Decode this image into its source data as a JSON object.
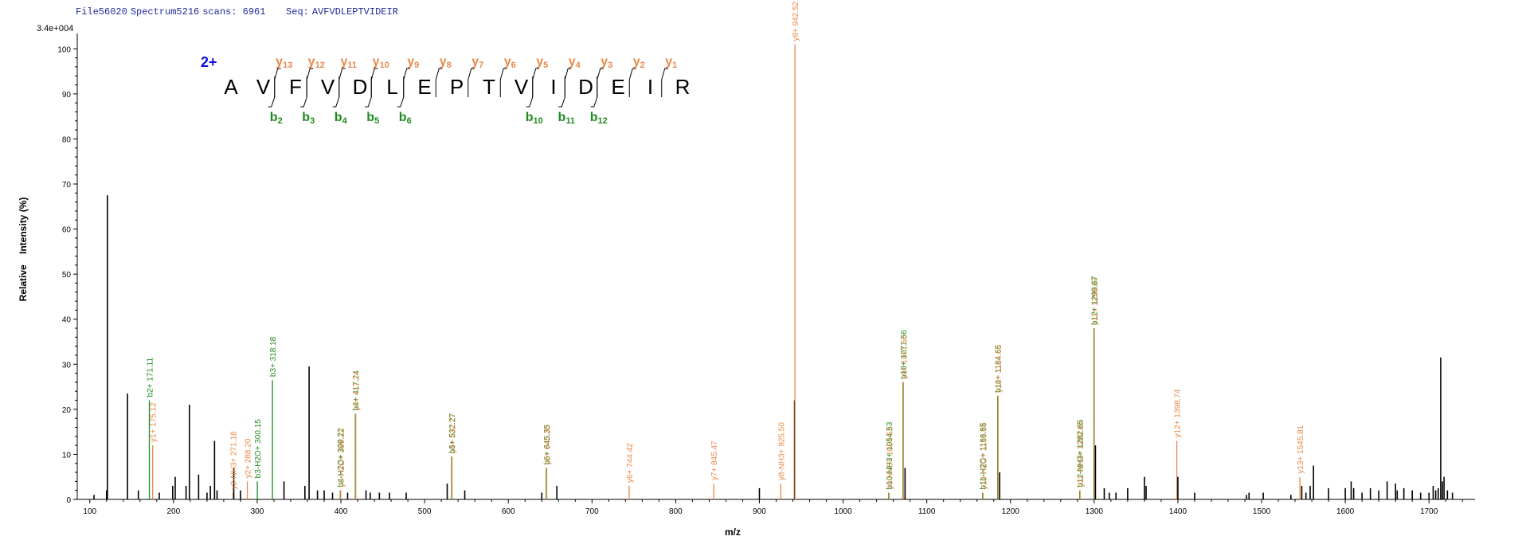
{
  "header": {
    "file": "File56020",
    "spectrum": "Spectrum5216",
    "scans_label": "scans: 6961",
    "seq_label": "Seq:",
    "sequence": "AVFVDLEPTVIDEIR"
  },
  "y_max_label": "3.4e+004",
  "charge_label": "2+",
  "chart_data": {
    "type": "bar",
    "xlabel": "m/z",
    "ylabel": "Relative    Intensity (%)",
    "xlim": [
      85,
      1755
    ],
    "ylim": [
      0,
      102
    ],
    "x_ticks": [
      100,
      200,
      300,
      400,
      500,
      600,
      700,
      800,
      900,
      1000,
      1100,
      1200,
      1300,
      1400,
      1500,
      1600,
      1700
    ],
    "y_ticks": [
      0,
      10,
      20,
      30,
      40,
      50,
      60,
      70,
      80,
      90,
      100
    ],
    "colors": {
      "b": "#1f8a1f",
      "y": "#e8894a",
      "other": "#000000"
    },
    "peaks": [
      {
        "mz": 105,
        "intensity": 1
      },
      {
        "mz": 120,
        "intensity": 2
      },
      {
        "mz": 121,
        "intensity": 67.5
      },
      {
        "mz": 145,
        "intensity": 23.5
      },
      {
        "mz": 158,
        "intensity": 2
      },
      {
        "mz": 171.11,
        "intensity": 22,
        "ion": "b",
        "label": "b2+ 171.11"
      },
      {
        "mz": 175.12,
        "intensity": 12,
        "ion": "y",
        "label": "y1+ 175.12"
      },
      {
        "mz": 183,
        "intensity": 1.5
      },
      {
        "mz": 199,
        "intensity": 3
      },
      {
        "mz": 202,
        "intensity": 5
      },
      {
        "mz": 215,
        "intensity": 3
      },
      {
        "mz": 219,
        "intensity": 21
      },
      {
        "mz": 230,
        "intensity": 5.5
      },
      {
        "mz": 240,
        "intensity": 1.5
      },
      {
        "mz": 244,
        "intensity": 3
      },
      {
        "mz": 249,
        "intensity": 13
      },
      {
        "mz": 252,
        "intensity": 2
      },
      {
        "mz": 271.18,
        "intensity": 1.5,
        "ion": "y",
        "label": "y2-NH3+ 271.18"
      },
      {
        "mz": 272,
        "intensity": 7
      },
      {
        "mz": 280,
        "intensity": 2
      },
      {
        "mz": 288.2,
        "intensity": 4,
        "ion": "y",
        "label": "y2+ 288.20"
      },
      {
        "mz": 300.15,
        "intensity": 4,
        "ion": "b",
        "label": "b3-H2O+ 300.15"
      },
      {
        "mz": 318.18,
        "intensity": 26.5,
        "ion": "b",
        "label": "b3+ 318.18"
      },
      {
        "mz": 332,
        "intensity": 4
      },
      {
        "mz": 357,
        "intensity": 3
      },
      {
        "mz": 362,
        "intensity": 29.5
      },
      {
        "mz": 372,
        "intensity": 2
      },
      {
        "mz": 380,
        "intensity": 2
      },
      {
        "mz": 390,
        "intensity": 1.5
      },
      {
        "mz": 399.22,
        "intensity": 2,
        "ion": "b",
        "label": "b4-H2O+ 399.22"
      },
      {
        "mz": 399.8,
        "intensity": 2,
        "ion": "y",
        "label": "y3-H2O+ 399.22"
      },
      {
        "mz": 408,
        "intensity": 1.5
      },
      {
        "mz": 417.24,
        "intensity": 19,
        "ion": "b",
        "label": "b4+ 417.24"
      },
      {
        "mz": 417.8,
        "intensity": 19,
        "ion": "y",
        "label": "y3+ 417.24"
      },
      {
        "mz": 430,
        "intensity": 2
      },
      {
        "mz": 435,
        "intensity": 1.5
      },
      {
        "mz": 446,
        "intensity": 1.5
      },
      {
        "mz": 458,
        "intensity": 1.5
      },
      {
        "mz": 478,
        "intensity": 1.5
      },
      {
        "mz": 527,
        "intensity": 3.5
      },
      {
        "mz": 532.27,
        "intensity": 9.5,
        "ion": "b",
        "label": "b5+ 532.27"
      },
      {
        "mz": 532.8,
        "intensity": 9.5,
        "ion": "y",
        "label": "y4+ 532.27"
      },
      {
        "mz": 548,
        "intensity": 2
      },
      {
        "mz": 640,
        "intensity": 1.5
      },
      {
        "mz": 645.35,
        "intensity": 7,
        "ion": "b",
        "label": "b6+ 645.35"
      },
      {
        "mz": 645.9,
        "intensity": 7,
        "ion": "y",
        "label": "y5+ 645.35"
      },
      {
        "mz": 658,
        "intensity": 3
      },
      {
        "mz": 744.42,
        "intensity": 3,
        "ion": "y",
        "label": "y6+ 744.42"
      },
      {
        "mz": 845.47,
        "intensity": 3.5,
        "ion": "y",
        "label": "y7+ 845.47"
      },
      {
        "mz": 900,
        "intensity": 2.5
      },
      {
        "mz": 925.5,
        "intensity": 3.5,
        "ion": "y",
        "label": "y8-NH3+ 925.50"
      },
      {
        "mz": 942,
        "intensity": 22
      },
      {
        "mz": 942.52,
        "intensity": 101,
        "ion": "y",
        "label": "y8+ 942.52"
      },
      {
        "mz": 1054.53,
        "intensity": 1.5,
        "ion": "b",
        "label": "b10-NH3+ 1054.53"
      },
      {
        "mz": 1055.1,
        "intensity": 1.5,
        "ion": "y",
        "label": "y9-NH3+ 1054.53"
      },
      {
        "mz": 1071.56,
        "intensity": 26,
        "ion": "b",
        "label": "b10+ 1071.56"
      },
      {
        "mz": 1072.1,
        "intensity": 26,
        "ion": "y",
        "label": "y9+ 1071.56"
      },
      {
        "mz": 1074,
        "intensity": 7
      },
      {
        "mz": 1166.65,
        "intensity": 1.5,
        "ion": "b",
        "label": "b11-H2O+ 1166.65"
      },
      {
        "mz": 1167.2,
        "intensity": 1.5,
        "ion": "y",
        "label": "y10-H2O+ 1166.65"
      },
      {
        "mz": 1184.65,
        "intensity": 23,
        "ion": "b",
        "label": "b11+ 1184.65"
      },
      {
        "mz": 1185.2,
        "intensity": 23,
        "ion": "y",
        "label": "y10+ 1184.65"
      },
      {
        "mz": 1187,
        "intensity": 6
      },
      {
        "mz": 1282.65,
        "intensity": 2,
        "ion": "b",
        "label": "b12-NH3+ 1282.65"
      },
      {
        "mz": 1283.2,
        "intensity": 2,
        "ion": "y",
        "label": "y11-NH3+ 1282.65"
      },
      {
        "mz": 1299.67,
        "intensity": 38,
        "ion": "b",
        "label": "b12+ 1299.67"
      },
      {
        "mz": 1300.2,
        "intensity": 38,
        "ion": "y",
        "label": "y11+ 1299.67"
      },
      {
        "mz": 1301.5,
        "intensity": 12
      },
      {
        "mz": 1312,
        "intensity": 2.5
      },
      {
        "mz": 1318,
        "intensity": 1.5
      },
      {
        "mz": 1326,
        "intensity": 1.5
      },
      {
        "mz": 1340,
        "intensity": 2.5
      },
      {
        "mz": 1360,
        "intensity": 5
      },
      {
        "mz": 1362,
        "intensity": 3
      },
      {
        "mz": 1398.74,
        "intensity": 13,
        "ion": "y",
        "label": "y12+ 1398.74"
      },
      {
        "mz": 1400,
        "intensity": 5
      },
      {
        "mz": 1420,
        "intensity": 1.5
      },
      {
        "mz": 1482,
        "intensity": 1
      },
      {
        "mz": 1485,
        "intensity": 1.5
      },
      {
        "mz": 1502,
        "intensity": 1.5
      },
      {
        "mz": 1535,
        "intensity": 1
      },
      {
        "mz": 1545.81,
        "intensity": 5,
        "ion": "y",
        "label": "y13+ 1545.81"
      },
      {
        "mz": 1548,
        "intensity": 3
      },
      {
        "mz": 1553,
        "intensity": 1.5
      },
      {
        "mz": 1558,
        "intensity": 3
      },
      {
        "mz": 1562,
        "intensity": 7.5
      },
      {
        "mz": 1580,
        "intensity": 2.5
      },
      {
        "mz": 1600,
        "intensity": 2.5
      },
      {
        "mz": 1607,
        "intensity": 4
      },
      {
        "mz": 1610,
        "intensity": 2.5
      },
      {
        "mz": 1620,
        "intensity": 1.5
      },
      {
        "mz": 1630,
        "intensity": 2.5
      },
      {
        "mz": 1640,
        "intensity": 2
      },
      {
        "mz": 1650,
        "intensity": 4
      },
      {
        "mz": 1660,
        "intensity": 3.5
      },
      {
        "mz": 1662,
        "intensity": 2
      },
      {
        "mz": 1670,
        "intensity": 2.5
      },
      {
        "mz": 1680,
        "intensity": 2
      },
      {
        "mz": 1690,
        "intensity": 1.5
      },
      {
        "mz": 1700,
        "intensity": 1.5
      },
      {
        "mz": 1705,
        "intensity": 3
      },
      {
        "mz": 1708,
        "intensity": 2
      },
      {
        "mz": 1711,
        "intensity": 2.5
      },
      {
        "mz": 1714,
        "intensity": 31.5
      },
      {
        "mz": 1716,
        "intensity": 4
      },
      {
        "mz": 1718,
        "intensity": 5
      },
      {
        "mz": 1722,
        "intensity": 2
      },
      {
        "mz": 1728,
        "intensity": 1.5
      }
    ]
  },
  "sequence_map": {
    "residues": [
      "A",
      "V",
      "F",
      "V",
      "D",
      "L",
      "E",
      "P",
      "T",
      "V",
      "I",
      "D",
      "E",
      "I",
      "R"
    ],
    "y_ions": [
      {
        "after": 2,
        "ion": "y",
        "num": "13"
      },
      {
        "after": 3,
        "ion": "y",
        "num": "12"
      },
      {
        "after": 4,
        "ion": "y",
        "num": "11"
      },
      {
        "after": 5,
        "ion": "y",
        "num": "10"
      },
      {
        "after": 6,
        "ion": "y",
        "num": "9"
      },
      {
        "after": 7,
        "ion": "y",
        "num": "8"
      },
      {
        "after": 8,
        "ion": "y",
        "num": "7"
      },
      {
        "after": 9,
        "ion": "y",
        "num": "6"
      },
      {
        "after": 10,
        "ion": "y",
        "num": "5"
      },
      {
        "after": 11,
        "ion": "y",
        "num": "4"
      },
      {
        "after": 12,
        "ion": "y",
        "num": "3"
      },
      {
        "after": 13,
        "ion": "y",
        "num": "2"
      },
      {
        "after": 14,
        "ion": "y",
        "num": "1"
      }
    ],
    "b_ions": [
      {
        "after": 2,
        "ion": "b",
        "num": "2"
      },
      {
        "after": 3,
        "ion": "b",
        "num": "3"
      },
      {
        "after": 4,
        "ion": "b",
        "num": "4"
      },
      {
        "after": 5,
        "ion": "b",
        "num": "5"
      },
      {
        "after": 6,
        "ion": "b",
        "num": "6"
      },
      {
        "after": 10,
        "ion": "b",
        "num": "10"
      },
      {
        "after": 11,
        "ion": "b",
        "num": "11"
      },
      {
        "after": 12,
        "ion": "b",
        "num": "12"
      }
    ]
  }
}
